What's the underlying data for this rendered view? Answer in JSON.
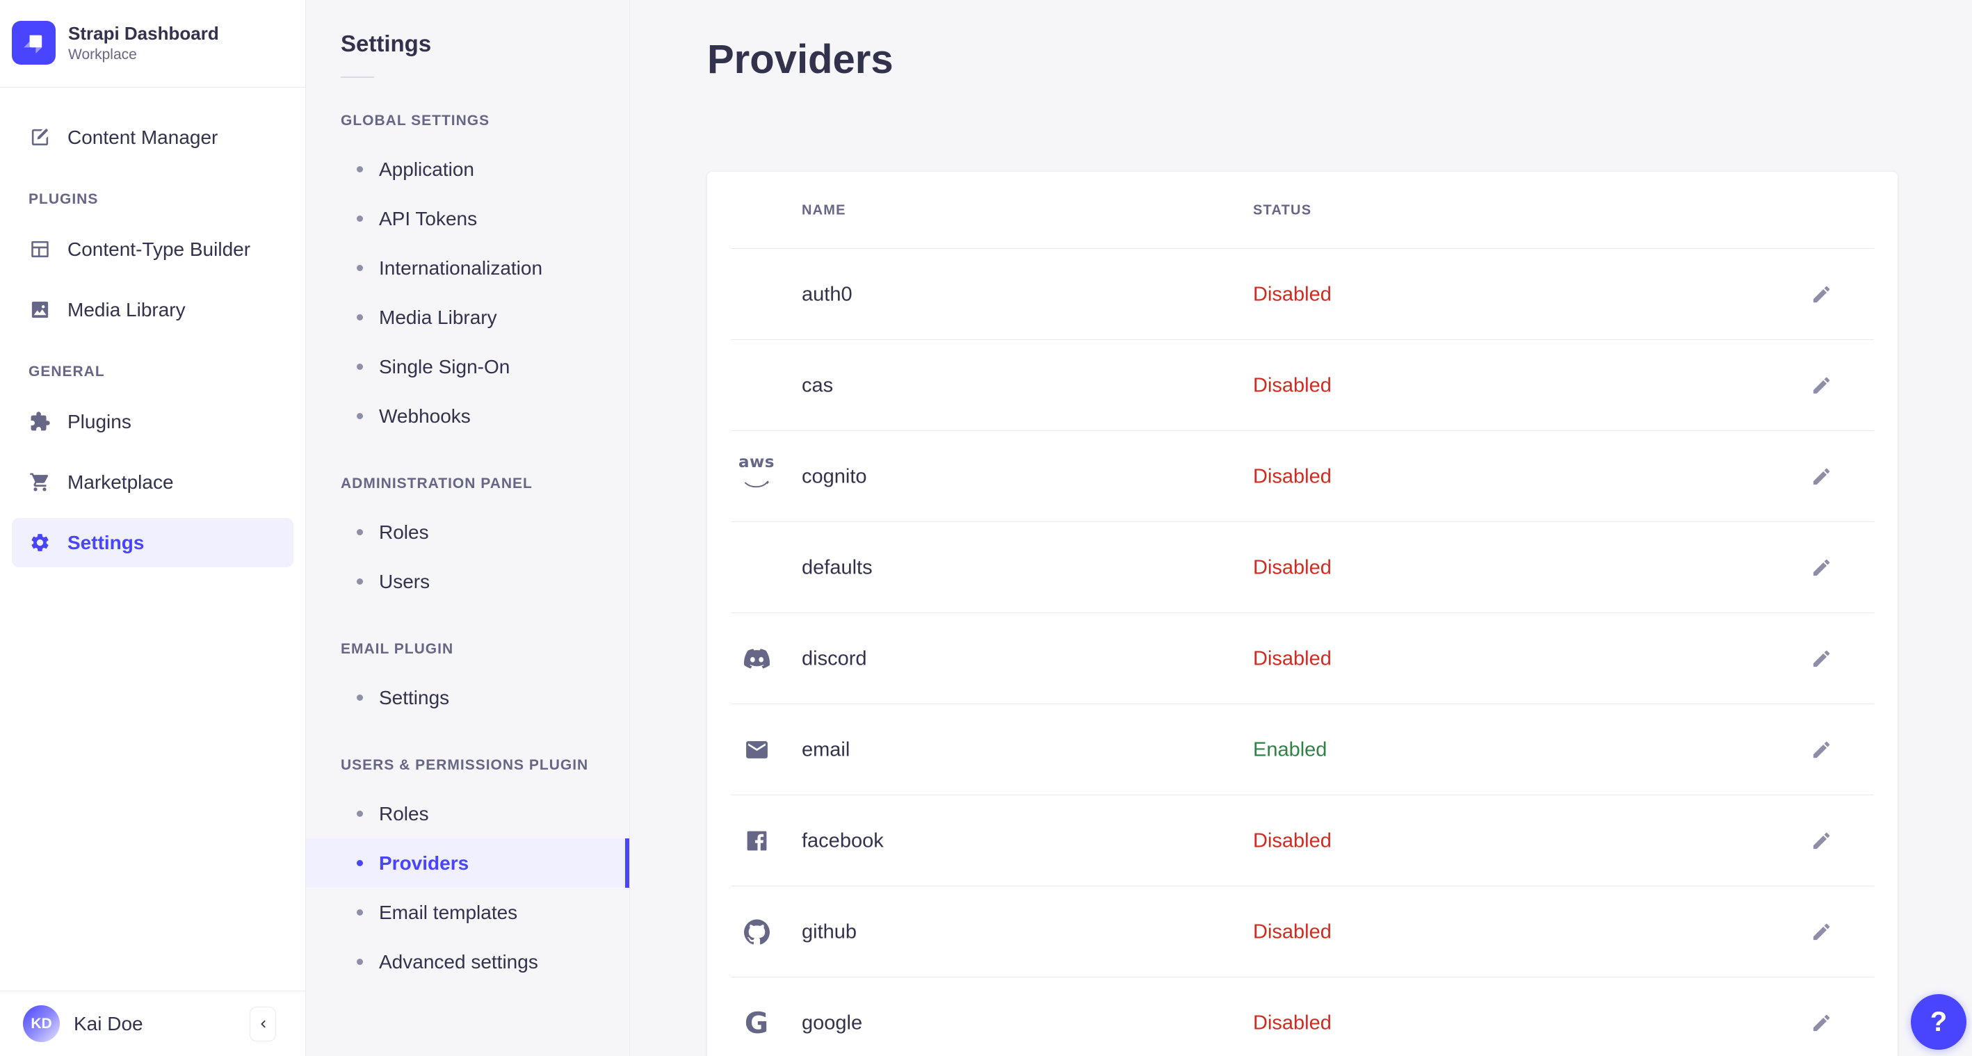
{
  "brand": {
    "title": "Strapi Dashboard",
    "subtitle": "Workplace"
  },
  "sidebar": {
    "primary": {
      "label": "Content Manager",
      "icon": "edit-doc"
    },
    "sections": [
      {
        "label": "PLUGINS",
        "items": [
          {
            "label": "Content-Type Builder",
            "icon": "layout"
          },
          {
            "label": "Media Library",
            "icon": "image"
          }
        ]
      },
      {
        "label": "GENERAL",
        "items": [
          {
            "label": "Plugins",
            "icon": "puzzle"
          },
          {
            "label": "Marketplace",
            "icon": "cart"
          },
          {
            "label": "Settings",
            "icon": "gear",
            "active": true
          }
        ]
      }
    ],
    "user": {
      "initials": "KD",
      "name": "Kai Doe"
    }
  },
  "subnav": {
    "title": "Settings",
    "sections": [
      {
        "label": "GLOBAL SETTINGS",
        "items": [
          {
            "label": "Application"
          },
          {
            "label": "API Tokens"
          },
          {
            "label": "Internationalization"
          },
          {
            "label": "Media Library"
          },
          {
            "label": "Single Sign-On"
          },
          {
            "label": "Webhooks"
          }
        ]
      },
      {
        "label": "ADMINISTRATION PANEL",
        "items": [
          {
            "label": "Roles"
          },
          {
            "label": "Users"
          }
        ]
      },
      {
        "label": "EMAIL PLUGIN",
        "items": [
          {
            "label": "Settings"
          }
        ]
      },
      {
        "label": "USERS & PERMISSIONS PLUGIN",
        "items": [
          {
            "label": "Roles"
          },
          {
            "label": "Providers",
            "active": true
          },
          {
            "label": "Email templates"
          },
          {
            "label": "Advanced settings"
          }
        ]
      }
    ]
  },
  "main": {
    "title": "Providers",
    "table": {
      "headers": [
        "NAME",
        "STATUS"
      ],
      "rows": [
        {
          "name": "auth0",
          "icon": null,
          "status": "Disabled"
        },
        {
          "name": "cas",
          "icon": null,
          "status": "Disabled"
        },
        {
          "name": "cognito",
          "icon": "aws",
          "status": "Disabled"
        },
        {
          "name": "defaults",
          "icon": null,
          "status": "Disabled"
        },
        {
          "name": "discord",
          "icon": "discord",
          "status": "Disabled"
        },
        {
          "name": "email",
          "icon": "envelope",
          "status": "Enabled"
        },
        {
          "name": "facebook",
          "icon": "facebook",
          "status": "Disabled"
        },
        {
          "name": "github",
          "icon": "github",
          "status": "Disabled"
        },
        {
          "name": "google",
          "icon": "google",
          "status": "Disabled"
        }
      ]
    }
  },
  "help": {
    "label": "?"
  },
  "colors": {
    "accent": "#4945ff",
    "accent_bg": "#f0f0ff",
    "enabled": "#328048",
    "disabled": "#d02b20",
    "icon_muted": "#666687"
  }
}
